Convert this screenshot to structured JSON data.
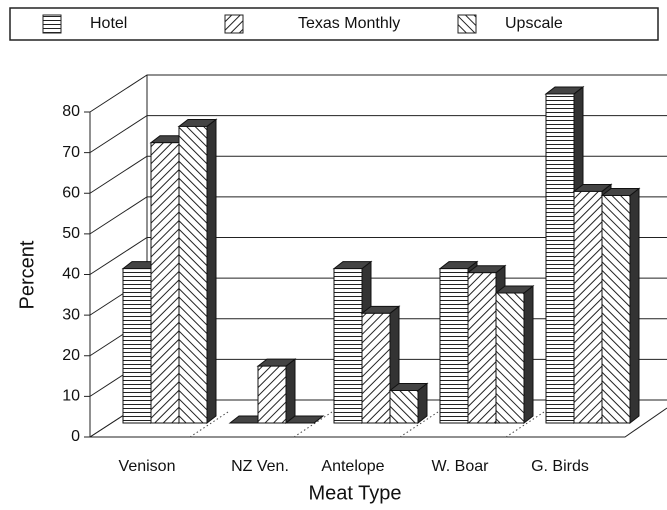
{
  "chart_data": {
    "type": "bar3d",
    "x_label": "Meat Type",
    "y_label": "Percent",
    "categories": [
      "Venison",
      "NZ Ven.",
      "Antelope",
      "W. Boar",
      "G. Birds"
    ],
    "series": [
      {
        "name": "Hotel",
        "pattern": "horizontal",
        "values": [
          38,
          0,
          38,
          38,
          81
        ]
      },
      {
        "name": "Texas Monthly",
        "pattern": "forward-diagonal",
        "values": [
          69,
          14,
          27,
          37,
          57
        ]
      },
      {
        "name": "Upscale",
        "pattern": "backward-diagonal",
        "values": [
          73,
          0,
          8,
          32,
          56
        ]
      }
    ],
    "ylim": [
      0,
      80
    ],
    "yticks": [
      0,
      10,
      20,
      30,
      40,
      50,
      60,
      70,
      80
    ],
    "grid": true
  }
}
